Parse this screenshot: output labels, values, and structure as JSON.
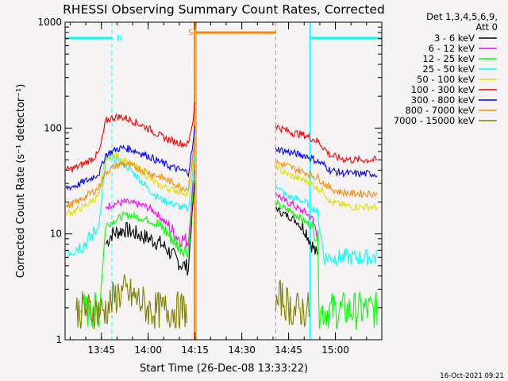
{
  "chart_data": {
    "type": "line",
    "title": "RHESSI Observing Summary Count Rates, Corrected",
    "xlabel": "Start Time (26-Dec-08 13:33:22)",
    "ylabel": "Corrected Count Rate (s⁻¹ detector⁻¹)",
    "y_scale": "log",
    "ylim": [
      1,
      1000
    ],
    "xlim_minutes_after_start": [
      0,
      101.5
    ],
    "x_tick_labels": [
      "13:45",
      "14:00",
      "14:15",
      "14:30",
      "14:45",
      "15:00"
    ],
    "x_tick_minutes": [
      11.633,
      26.633,
      41.633,
      56.633,
      71.633,
      86.633
    ],
    "y_tick_labels": [
      "1",
      "10",
      "100",
      "1000"
    ],
    "y_ticks": [
      1,
      10,
      100,
      1000
    ],
    "legend_title": "Det 1,3,4,5,6,9,",
    "legend_subtitle": "Att 0",
    "legend_position": "right",
    "flag_labels": [
      "N",
      "S"
    ],
    "timestamp": "16-Oct-2021 09:21",
    "gap_minutes": [
      [
        42.0,
        67.5
      ]
    ],
    "series": [
      {
        "name": "3 - 6 keV",
        "color": "#000000",
        "x": [
          13.0,
          15,
          17,
          19,
          21,
          23,
          25,
          27,
          29,
          31,
          33,
          35,
          37,
          39.5,
          41.0,
          41.6,
          67.5,
          69,
          71,
          73,
          75,
          77,
          79,
          81
        ],
        "y": [
          8,
          10,
          10.5,
          11,
          10.5,
          10,
          9.5,
          9,
          8.5,
          8,
          7,
          6,
          5.2,
          4.8,
          20,
          30,
          18,
          16,
          15,
          14,
          12.5,
          11,
          8,
          6
        ]
      },
      {
        "name": "6 - 12 keV",
        "color": "#ff00ff",
        "x": [
          13.0,
          15,
          17,
          19,
          21,
          23,
          25,
          27,
          29,
          31,
          33,
          35,
          37,
          39.5,
          41.0,
          41.6,
          67.5,
          69,
          71,
          73,
          75,
          77,
          79,
          81
        ],
        "y": [
          18,
          19,
          19.5,
          20,
          19.5,
          19,
          18.5,
          17.5,
          16,
          14,
          12,
          10,
          9,
          8.5,
          30,
          40,
          25,
          22,
          20,
          19,
          17,
          16,
          14,
          10
        ]
      },
      {
        "name": "12 - 25 keV",
        "color": "#00ff00",
        "x": [
          5.0,
          7,
          9,
          11,
          13.0,
          15,
          17,
          19,
          21,
          23,
          25,
          27,
          29,
          31,
          33,
          35,
          37,
          39.5,
          41.0,
          41.6,
          67.5,
          69,
          71,
          73,
          75,
          77,
          79,
          81,
          81.5,
          85,
          87,
          92,
          96,
          100
        ],
        "y": [
          1.9,
          1.9,
          1.9,
          1.9,
          12,
          13,
          14,
          15,
          15,
          14.5,
          14,
          13.5,
          12.5,
          11.5,
          10,
          8.5,
          7.5,
          7,
          25,
          35,
          20,
          18,
          17,
          16,
          14.5,
          13,
          12,
          9,
          1.9,
          1.9,
          1.9,
          1.9,
          1.9,
          1.9
        ]
      },
      {
        "name": "25 - 50 keV",
        "color": "#00ffff",
        "x": [
          0.3,
          2,
          4,
          6,
          8,
          10,
          11,
          13.0,
          15,
          17,
          19,
          21,
          23,
          25,
          27,
          29,
          31,
          33,
          35,
          37,
          39.5,
          41.0,
          41.6,
          67.5,
          69,
          71,
          73,
          75,
          77,
          79,
          81,
          83,
          85,
          87,
          89,
          92,
          96,
          100
        ],
        "y": [
          7,
          7,
          7.5,
          8,
          9,
          11,
          13,
          50,
          52,
          50,
          45,
          40,
          35,
          30,
          26,
          23,
          21,
          20,
          19,
          18,
          17,
          40,
          60,
          30,
          26,
          23,
          22,
          21,
          20,
          18,
          16,
          6,
          6,
          6,
          6,
          6,
          6,
          6
        ]
      },
      {
        "name": "50 - 100 keV",
        "color": "#e0e000",
        "x": [
          0.3,
          2,
          4,
          6,
          8,
          10,
          11,
          13.0,
          15,
          17,
          19,
          21,
          23,
          25,
          27,
          29,
          31,
          33,
          35,
          37,
          39.5,
          41.0,
          41.6,
          67.5,
          69,
          71,
          73,
          75,
          77,
          79,
          81,
          83,
          85,
          88,
          92,
          96,
          100
        ],
        "y": [
          16,
          16,
          17,
          18,
          20,
          22,
          24,
          52,
          55,
          54,
          50,
          46,
          42,
          38,
          34,
          30,
          28,
          27,
          26,
          25,
          24,
          50,
          80,
          45,
          40,
          37,
          35,
          33,
          32,
          30,
          27,
          25,
          20,
          19,
          18,
          18,
          18
        ]
      },
      {
        "name": "100 - 300 keV",
        "color": "#ff0000",
        "x": [
          0.3,
          2,
          4,
          6,
          8,
          10,
          11,
          13.0,
          15,
          17,
          19,
          21,
          23,
          25,
          27,
          29,
          31,
          33,
          35,
          37,
          39.5,
          41.0,
          41.6,
          67.5,
          69,
          71,
          73,
          75,
          77,
          79,
          81,
          83,
          85,
          88,
          92,
          96,
          100
        ],
        "y": [
          40,
          41,
          43,
          46,
          50,
          55,
          60,
          115,
          125,
          128,
          125,
          120,
          112,
          105,
          98,
          90,
          83,
          78,
          75,
          72,
          70,
          120,
          180,
          105,
          100,
          95,
          90,
          88,
          85,
          80,
          75,
          65,
          55,
          52,
          50,
          50,
          50
        ]
      },
      {
        "name": "300 - 800 keV",
        "color": "#0000ff",
        "x": [
          0.3,
          2,
          4,
          6,
          8,
          10,
          11,
          13.0,
          15,
          17,
          19,
          21,
          23,
          25,
          27,
          29,
          31,
          33,
          35,
          37,
          39.5,
          41.0,
          41.6,
          67.5,
          69,
          71,
          73,
          75,
          77,
          79,
          81,
          83,
          85,
          88,
          92,
          96,
          100
        ],
        "y": [
          27,
          28,
          29,
          31,
          33,
          36,
          38,
          56,
          60,
          64,
          65,
          63,
          60,
          57,
          54,
          50,
          47,
          44,
          42,
          40,
          38,
          70,
          100,
          65,
          62,
          60,
          58,
          56,
          55,
          52,
          48,
          45,
          40,
          38,
          37,
          37,
          37
        ]
      },
      {
        "name": "800 - 7000 keV",
        "color": "#ff8800",
        "x": [
          0.3,
          2,
          4,
          6,
          8,
          10,
          11,
          13.0,
          15,
          17,
          19,
          21,
          23,
          25,
          27,
          29,
          31,
          33,
          35,
          37,
          39.5,
          41.0,
          41.6,
          67.5,
          69,
          71,
          73,
          75,
          77,
          79,
          81,
          83,
          85,
          88,
          92,
          96,
          100
        ],
        "y": [
          18,
          19,
          20,
          22,
          24,
          26,
          28,
          38,
          42,
          45,
          46,
          44,
          42,
          40,
          38,
          36,
          34,
          32,
          30,
          28,
          27,
          55,
          85,
          48,
          46,
          44,
          42,
          40,
          38,
          36,
          34,
          30,
          27,
          25,
          24,
          24,
          24
        ]
      },
      {
        "name": "7000 - 15000 keV",
        "color": "#808000",
        "x": [
          3.5,
          5,
          7,
          9,
          11,
          13,
          15,
          17,
          19,
          21,
          23,
          25,
          27,
          29,
          31,
          33,
          35,
          37,
          39,
          67.5,
          69,
          71,
          73,
          75,
          77,
          78.5
        ],
        "y": [
          1.9,
          1.9,
          1.9,
          1.9,
          1.9,
          1.9,
          2.3,
          2.7,
          2.8,
          2.6,
          2.4,
          2.2,
          1.9,
          1.9,
          1.9,
          1.9,
          1.9,
          1.9,
          1.9,
          1.9,
          2.5,
          2.2,
          1.9,
          1.9,
          1.9,
          1.9
        ]
      }
    ],
    "flags": [
      {
        "label": "N",
        "color": "#00ffff",
        "intervals": [
          [
            0,
            15.0
          ],
          [
            78.5,
            101.5
          ]
        ]
      },
      {
        "label": "S",
        "color": "#ff8800",
        "intervals": [
          [
            42.0,
            67.5
          ]
        ]
      }
    ]
  }
}
